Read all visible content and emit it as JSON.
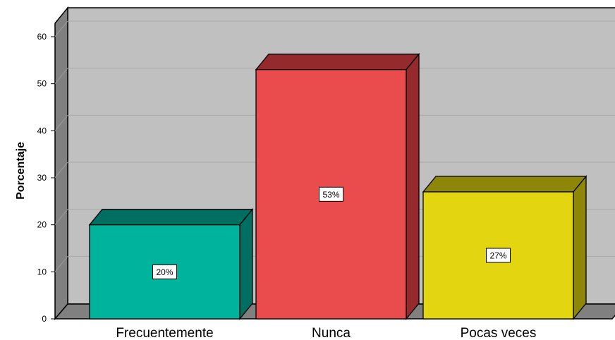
{
  "chart_data": {
    "type": "bar",
    "style": "3d",
    "categories": [
      "Frecuentemente",
      "Nunca",
      "Pocas veces"
    ],
    "values": [
      20,
      53,
      27
    ],
    "data_labels": [
      "20%",
      "53%",
      "27%"
    ],
    "ylabel": "Porcentaje",
    "xlabel": "",
    "title": "",
    "ylim": [
      0,
      60
    ],
    "yticks": [
      0,
      10,
      20,
      30,
      40,
      50,
      60
    ],
    "grid": true,
    "legend": "none",
    "colors": {
      "bars": [
        "#00b39d",
        "#ea4b4d",
        "#e3d610"
      ],
      "bar_tops": [
        "#006f62",
        "#952a2c",
        "#8e8608"
      ],
      "bar_sides": [
        "#006f62",
        "#952a2c",
        "#8e8608"
      ],
      "plot_background": "#c0c0c0",
      "left_wall": "#808080",
      "floor": "#808080",
      "gridline": "#a8a8a8"
    }
  }
}
